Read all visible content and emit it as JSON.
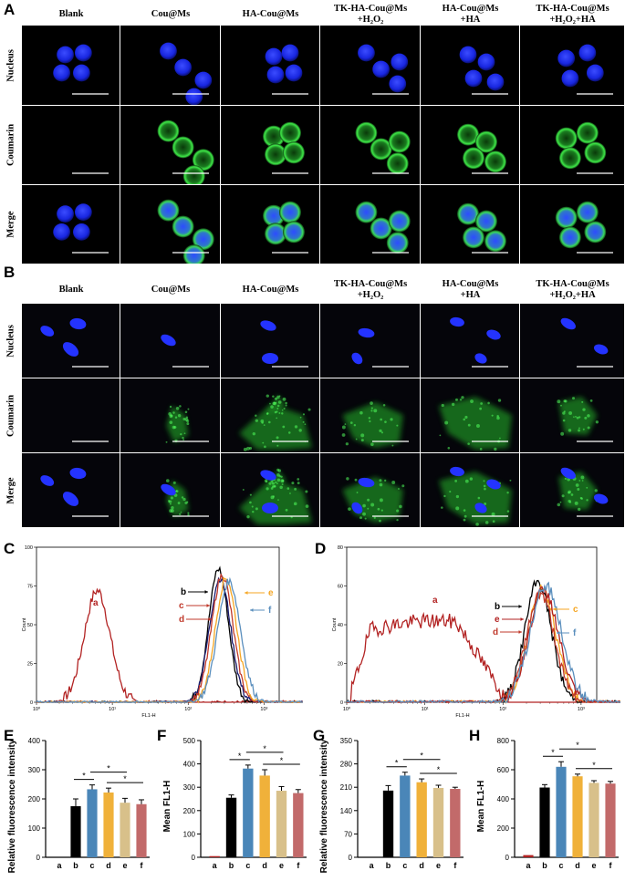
{
  "panels": {
    "A": "A",
    "B": "B",
    "C": "C",
    "D": "D",
    "E": "E",
    "F": "F",
    "G": "G",
    "H": "H"
  },
  "micrograph_columns": [
    {
      "line1": "Blank",
      "line2": ""
    },
    {
      "line1": "Cou@Ms",
      "line2": ""
    },
    {
      "line1": "HA-Cou@Ms",
      "line2": ""
    },
    {
      "line1": "TK-HA-Cou@Ms",
      "line2": "+H₂O₂"
    },
    {
      "line1": "HA-Cou@Ms",
      "line2": "+HA"
    },
    {
      "line1": "TK-HA-Cou@Ms",
      "line2": "+H₂O₂+HA"
    }
  ],
  "micrograph_rows": [
    "Nucleus",
    "Coumarin",
    "Merge"
  ],
  "colors": {
    "nucleus": "#1f2cff",
    "coumarin": "#2ee63a",
    "a": "#b22222",
    "b": "#000000",
    "c": "#1a1a6e",
    "d": "#c0392b",
    "e": "#f5a623",
    "f": "#5b8fbd"
  },
  "flow_C": {
    "type": "line",
    "ylabel": "Count",
    "xlabel": "FL1-H",
    "yticks": [
      "0",
      "25",
      "50",
      "75",
      "100"
    ],
    "xticks": [
      "10⁰",
      "10¹",
      "10²",
      "10³"
    ],
    "ylim": [
      0,
      100
    ],
    "labels": {
      "a": "a",
      "b": "b",
      "c": "c",
      "d": "d",
      "e": "e",
      "f": "f"
    }
  },
  "flow_D": {
    "type": "line",
    "ylabel": "Count",
    "xlabel": "FL1-H",
    "yticks": [
      "0",
      "20",
      "40",
      "60",
      "80"
    ],
    "xticks": [
      "10⁰",
      "10¹",
      "10²",
      "10³"
    ],
    "ylim": [
      0,
      80
    ],
    "labels": {
      "a": "a",
      "b": "b",
      "c": "c",
      "d": "d",
      "e": "e",
      "f": "f"
    }
  },
  "chart_data": [
    {
      "type": "bar",
      "panel": "E",
      "ylabel": "Relative fluorescence intensity",
      "categories": [
        "a",
        "b",
        "c",
        "d",
        "e",
        "f"
      ],
      "values": [
        0,
        175,
        233,
        222,
        187,
        182
      ],
      "errors": [
        0,
        25,
        15,
        15,
        15,
        15
      ],
      "ylim": [
        0,
        400
      ],
      "yticks": [
        "0",
        "100",
        "200",
        "300",
        "400"
      ],
      "sig": [
        "*",
        "*",
        "*"
      ]
    },
    {
      "type": "bar",
      "panel": "F",
      "ylabel": "Mean FL1-H",
      "categories": [
        "a",
        "b",
        "c",
        "d",
        "e",
        "f"
      ],
      "values": [
        5,
        255,
        380,
        350,
        285,
        275
      ],
      "errors": [
        0,
        12,
        15,
        25,
        18,
        15
      ],
      "ylim": [
        0,
        500
      ],
      "yticks": [
        "0",
        "100",
        "200",
        "300",
        "400",
        "500"
      ],
      "sig": [
        "*",
        "*",
        "*"
      ]
    },
    {
      "type": "bar",
      "panel": "G",
      "ylabel": "Relative fluorescence intensity",
      "categories": [
        "a",
        "b",
        "c",
        "d",
        "e",
        "f"
      ],
      "values": [
        0,
        200,
        245,
        225,
        208,
        205
      ],
      "errors": [
        0,
        15,
        10,
        10,
        8,
        5
      ],
      "ylim": [
        0,
        350
      ],
      "yticks": [
        "0",
        "70",
        "140",
        "210",
        "280",
        "350"
      ],
      "sig": [
        "*",
        "*",
        "*"
      ]
    },
    {
      "type": "bar",
      "panel": "H",
      "ylabel": "Mean FL1-H",
      "categories": [
        "a",
        "b",
        "c",
        "d",
        "e",
        "f"
      ],
      "values": [
        15,
        478,
        620,
        555,
        510,
        505
      ],
      "errors": [
        0,
        20,
        35,
        15,
        15,
        15
      ],
      "ylim": [
        0,
        800
      ],
      "yticks": [
        "0",
        "200",
        "400",
        "600",
        "800"
      ],
      "sig": [
        "*",
        "*",
        "*"
      ]
    }
  ]
}
